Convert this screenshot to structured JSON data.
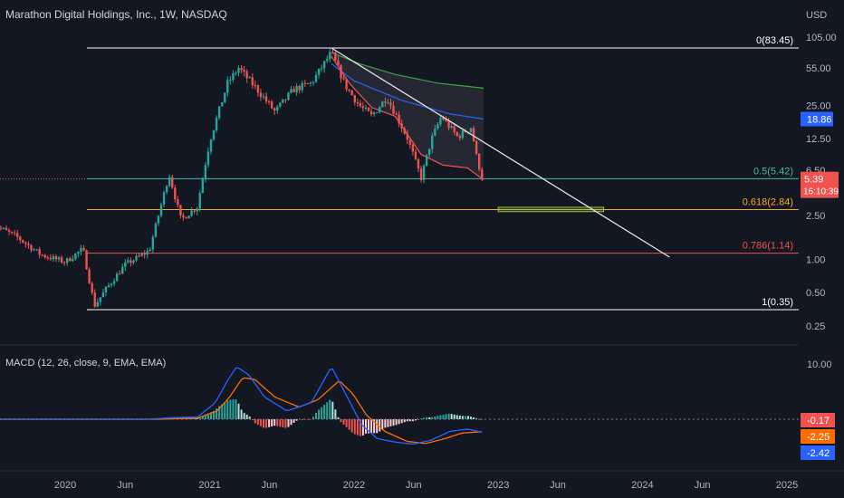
{
  "header": {
    "title": "Marathon Digital Holdings, Inc., 1W, NASDAQ",
    "currency": "USD"
  },
  "colors": {
    "background": "#131722",
    "up": "#26a69a",
    "down": "#ef5350",
    "text": "#d1d4dc",
    "fib_half": "#4db6ac",
    "fib_618": "#ffa726",
    "fib_786": "#ef5350",
    "fib_edge": "#ffffff",
    "macd": "#2962ff",
    "signal": "#ff6d00",
    "ma_green": "#43a047",
    "ma_blue": "#2962ff",
    "ma_red": "#ef5350",
    "target_box": "#8bc34a"
  },
  "chart_data": [
    {
      "type": "candlestick",
      "title": "Marathon Digital Holdings, Inc., 1W, NASDAQ",
      "ylabel": "USD",
      "yscale": "log",
      "ylim": [
        0.25,
        105
      ],
      "y_ticks": [
        "105.00",
        "55.00",
        "25.00",
        "12.50",
        "6.50",
        "2.50",
        "1.00",
        "0.50",
        "0.25"
      ],
      "x_ticks": [
        "2020",
        "Jun",
        "2021",
        "Jun",
        "2022",
        "Jun",
        "2023",
        "Jun",
        "2024",
        "Jun",
        "2025"
      ],
      "x_tick_dates": [
        "2020-01-01",
        "2020-06-01",
        "2021-01-01",
        "2021-06-01",
        "2022-01-01",
        "2022-06-01",
        "2023-01-01",
        "2023-06-01",
        "2024-01-01",
        "2024-06-01",
        "2025-01-01"
      ],
      "price_anchors": [
        {
          "date": "2019-07-01",
          "price": 2.1
        },
        {
          "date": "2019-09-01",
          "price": 1.6
        },
        {
          "date": "2019-11-01",
          "price": 1.1
        },
        {
          "date": "2020-01-01",
          "price": 0.95
        },
        {
          "date": "2020-02-15",
          "price": 1.25
        },
        {
          "date": "2020-03-15",
          "price": 0.38
        },
        {
          "date": "2020-04-15",
          "price": 0.55
        },
        {
          "date": "2020-06-01",
          "price": 0.9
        },
        {
          "date": "2020-08-01",
          "price": 1.2
        },
        {
          "date": "2020-09-20",
          "price": 6.0
        },
        {
          "date": "2020-10-20",
          "price": 2.3
        },
        {
          "date": "2020-11-30",
          "price": 3.0
        },
        {
          "date": "2021-01-01",
          "price": 12.0
        },
        {
          "date": "2021-02-15",
          "price": 40.0
        },
        {
          "date": "2021-03-15",
          "price": 55.0
        },
        {
          "date": "2021-05-01",
          "price": 35.0
        },
        {
          "date": "2021-06-15",
          "price": 22.0
        },
        {
          "date": "2021-08-01",
          "price": 35.0
        },
        {
          "date": "2021-09-15",
          "price": 40.0
        },
        {
          "date": "2021-11-05",
          "price": 76.0
        },
        {
          "date": "2021-12-10",
          "price": 38.0
        },
        {
          "date": "2022-01-15",
          "price": 25.0
        },
        {
          "date": "2022-02-15",
          "price": 20.0
        },
        {
          "date": "2022-03-25",
          "price": 30.0
        },
        {
          "date": "2022-05-15",
          "price": 13.0
        },
        {
          "date": "2022-06-20",
          "price": 5.5
        },
        {
          "date": "2022-07-15",
          "price": 12.0
        },
        {
          "date": "2022-08-10",
          "price": 20.0
        },
        {
          "date": "2022-09-20",
          "price": 13.0
        },
        {
          "date": "2022-10-25",
          "price": 16.0
        },
        {
          "date": "2022-11-10",
          "price": 7.5
        },
        {
          "date": "2022-11-25",
          "price": 5.39
        }
      ],
      "last_price": "5.39",
      "countdown": "16:10:39",
      "marker_value": "18.86",
      "fibonacci": [
        {
          "level": "0",
          "price": 83.45,
          "label": "0(83.45)"
        },
        {
          "level": "0.5",
          "price": 5.42,
          "label": "0.5(5.42)"
        },
        {
          "level": "0.618",
          "price": 2.84,
          "label": "0.618(2.84)"
        },
        {
          "level": "0.786",
          "price": 1.14,
          "label": "0.786(1.14)"
        },
        {
          "level": "1",
          "price": 0.35,
          "label": "1(0.35)"
        }
      ],
      "trendline": {
        "start_date": "2021-11-05",
        "start_price": 83.45,
        "end_date": "2024-03-10",
        "end_price": 1.05
      },
      "target_zone": {
        "start_date": "2023-01-01",
        "end_date": "2023-09-25",
        "price_low": 2.72,
        "price_high": 2.98
      },
      "moving_averages": [
        {
          "color": "#43a047",
          "points": [
            [
              "2021-11-05",
              76
            ],
            [
              "2022-01-15",
              60
            ],
            [
              "2022-04-15",
              48
            ],
            [
              "2022-08-01",
              40
            ],
            [
              "2022-11-25",
              36
            ]
          ]
        },
        {
          "color": "#2962ff",
          "points": [
            [
              "2021-11-05",
              60
            ],
            [
              "2022-01-01",
              42
            ],
            [
              "2022-05-01",
              28
            ],
            [
              "2022-09-01",
              21
            ],
            [
              "2022-11-25",
              18.86
            ]
          ]
        },
        {
          "color": "#ef5350",
          "points": [
            [
              "2021-11-05",
              70
            ],
            [
              "2021-12-20",
              40
            ],
            [
              "2022-02-15",
              24
            ],
            [
              "2022-04-15",
              20
            ],
            [
              "2022-06-20",
              9
            ],
            [
              "2022-08-15",
              7.2
            ],
            [
              "2022-10-15",
              6.8
            ],
            [
              "2022-11-25",
              5.3
            ]
          ]
        }
      ]
    },
    {
      "type": "macd",
      "title": "MACD (12, 26, close, 9, EMA, EMA)",
      "y_tick": "10.00",
      "macd_value": "-2.42",
      "signal_value": "-2.25",
      "histogram_value": "-0.17",
      "macd_anchors": [
        [
          "2019-07-01",
          0
        ],
        [
          "2020-08-01",
          0
        ],
        [
          "2020-10-01",
          0.3
        ],
        [
          "2020-12-01",
          0.4
        ],
        [
          "2021-01-15",
          3
        ],
        [
          "2021-02-15",
          7
        ],
        [
          "2021-03-10",
          9.5
        ],
        [
          "2021-04-10",
          8
        ],
        [
          "2021-05-20",
          4
        ],
        [
          "2021-07-15",
          1.5
        ],
        [
          "2021-09-15",
          3
        ],
        [
          "2021-11-05",
          9.5
        ],
        [
          "2021-12-15",
          4
        ],
        [
          "2022-01-20",
          -1
        ],
        [
          "2022-03-01",
          -3.5
        ],
        [
          "2022-04-20",
          -4.2
        ],
        [
          "2022-06-01",
          -4.5
        ],
        [
          "2022-07-15",
          -3.8
        ],
        [
          "2022-09-01",
          -2.2
        ],
        [
          "2022-10-15",
          -1.8
        ],
        [
          "2022-11-25",
          -2.42
        ]
      ],
      "signal_anchors": [
        [
          "2019-07-01",
          0
        ],
        [
          "2020-09-01",
          0
        ],
        [
          "2020-12-01",
          0.2
        ],
        [
          "2021-01-20",
          1.5
        ],
        [
          "2021-02-20",
          4
        ],
        [
          "2021-03-25",
          7.5
        ],
        [
          "2021-04-25",
          7.2
        ],
        [
          "2021-06-15",
          4
        ],
        [
          "2021-08-15",
          2.2
        ],
        [
          "2021-10-01",
          3.5
        ],
        [
          "2021-11-25",
          7
        ],
        [
          "2021-12-30",
          4.5
        ],
        [
          "2022-02-01",
          0.8
        ],
        [
          "2022-03-20",
          -2.2
        ],
        [
          "2022-05-15",
          -4
        ],
        [
          "2022-07-01",
          -4.4
        ],
        [
          "2022-08-20",
          -3.5
        ],
        [
          "2022-10-01",
          -2.5
        ],
        [
          "2022-11-25",
          -2.25
        ]
      ],
      "ylim": [
        -5.5,
        11
      ]
    }
  ]
}
